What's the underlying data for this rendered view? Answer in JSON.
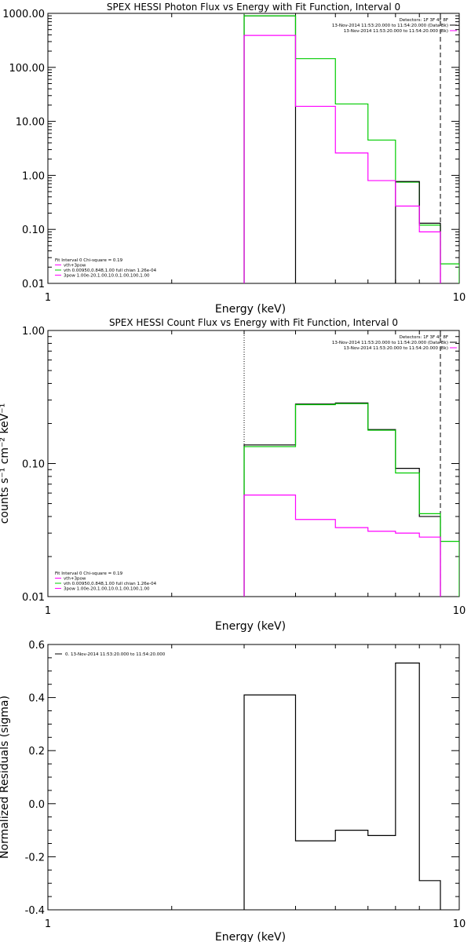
{
  "chart_data": [
    {
      "type": "line",
      "title": "SPEX HESSI Photon Flux vs Energy with Fit Function, Interval 0",
      "xlabel": "Energy (keV)",
      "ylabel": "",
      "xscale": "log",
      "yscale": "log",
      "xlim": [
        1,
        10
      ],
      "ylim": [
        0.01,
        1000
      ],
      "x_ticks": [
        "1",
        "10"
      ],
      "y_ticks": [
        "1000.00",
        "100.00",
        "10.00",
        "1.00",
        "0.10",
        "0.01"
      ],
      "grid": false,
      "info_text": [
        "Detectors: 1F 3F 4F 8F",
        "13-Nov-2014 11:53:20.000 to 11:54:20.000 (Data-Bk)",
        "13-Nov-2014 11:53:20.000 to 11:54:20.000 (Bk)"
      ],
      "info_legend_colors": [
        "#000000",
        "#ff00ff"
      ],
      "legend_text": [
        "Fit Interval 0   Chi-square = 0.19",
        "vth+3pow",
        "vth 0.00950,0.848,1.00   full chian 1.26e-04",
        "3pow 1.00e-20,1.00,10.0,1.00,100,1.00"
      ],
      "legend_colors": [
        "",
        "#ff00ff",
        "#00cc00",
        "#ff00ff"
      ],
      "legend_position": "bottom-left",
      "vertical_lines": [
        {
          "x": 3.0,
          "style": "dotted",
          "color": "#00cc00"
        },
        {
          "x": 9.0,
          "style": "dashed",
          "color": "#000000"
        }
      ],
      "series": [
        {
          "color": "#000000",
          "edges": [
            3.0,
            4.0
          ],
          "values": [
            900
          ]
        },
        {
          "color": "#00cc00",
          "edges": [
            3.0,
            4.0,
            5.0,
            6.0,
            7.0,
            8.0,
            9.0,
            10.0
          ],
          "values": [
            900,
            145,
            21,
            4.5,
            0.75,
            0.12,
            0.023
          ]
        },
        {
          "color": "#000000",
          "edges": [
            7.0,
            8.0,
            9.0
          ],
          "values": [
            0.77,
            0.13
          ]
        },
        {
          "color": "#ff00ff",
          "edges": [
            3.0,
            4.0,
            5.0,
            6.0,
            7.0,
            8.0,
            9.0
          ],
          "values": [
            390,
            19,
            2.6,
            0.8,
            0.27,
            0.09
          ]
        }
      ]
    },
    {
      "type": "line",
      "title": "SPEX HESSI Count Flux vs Energy with Fit Function, Interval 0",
      "xlabel": "Energy (keV)",
      "ylabel": "counts s⁻¹ cm⁻² keV⁻¹",
      "xscale": "log",
      "yscale": "log",
      "xlim": [
        1,
        10
      ],
      "ylim": [
        0.01,
        1.0
      ],
      "x_ticks": [
        "1",
        "10"
      ],
      "y_ticks": [
        "1.00",
        "0.10",
        "0.01"
      ],
      "grid": false,
      "info_text": [
        "Detectors: 1F 3F 4F 8F",
        "13-Nov-2014 11:53:20.000 to 11:54:20.000 (Data-Bk)",
        "13-Nov-2014 11:53:20.000 to 11:54:20.000 (Bk)"
      ],
      "info_legend_colors": [
        "#000000",
        "#ff00ff"
      ],
      "legend_text": [
        "Fit Interval 0   Chi-square = 0.19",
        "vth+3pow",
        "vth 0.00950,0.848,1.00   full chian 1.26e-04",
        "3pow 1.00e-20,1.00,10.0,1.00,100,1.00"
      ],
      "legend_colors": [
        "",
        "#ff00ff",
        "#00cc00",
        "#ff00ff"
      ],
      "legend_position": "bottom-left",
      "vertical_lines": [
        {
          "x": 3.0,
          "style": "dotted",
          "color": "#000000"
        },
        {
          "x": 9.0,
          "style": "dashed",
          "color": "#000000"
        }
      ],
      "series": [
        {
          "color": "#000000",
          "edges": [
            3.0,
            4.0,
            5.0,
            6.0,
            7.0,
            8.0,
            9.0
          ],
          "values": [
            0.138,
            0.28,
            0.285,
            0.18,
            0.092,
            0.04
          ]
        },
        {
          "color": "#00cc00",
          "edges": [
            3.0,
            4.0,
            5.0,
            6.0,
            7.0,
            8.0,
            9.0,
            10.0
          ],
          "values": [
            0.134,
            0.277,
            0.282,
            0.178,
            0.085,
            0.042,
            0.026
          ]
        },
        {
          "color": "#ff00ff",
          "edges": [
            3.0,
            4.0,
            5.0,
            6.0,
            7.0,
            8.0,
            9.0
          ],
          "values": [
            0.058,
            0.038,
            0.033,
            0.031,
            0.03,
            0.028
          ]
        }
      ]
    },
    {
      "type": "line",
      "title": "",
      "xlabel": "Energy (keV)",
      "ylabel": "Normalized Residuals (sigma)",
      "xscale": "log",
      "yscale": "linear",
      "xlim": [
        1,
        10
      ],
      "ylim": [
        -0.4,
        0.6
      ],
      "x_ticks": [
        "1",
        "10"
      ],
      "y_ticks": [
        "0.6",
        "0.4",
        "0.2",
        "0.0",
        "-0.2",
        "-0.4"
      ],
      "grid": false,
      "info_text": [
        "0. 13-Nov-2014 11:53:20.000 to 11:54:20.000"
      ],
      "info_legend_colors": [
        "#000000"
      ],
      "legend_text": [],
      "legend_colors": [],
      "legend_position": "top-left",
      "vertical_lines": [],
      "series": [
        {
          "color": "#000000",
          "edges": [
            3.0,
            4.0,
            5.0,
            6.0,
            7.0,
            8.0,
            9.0
          ],
          "values": [
            0.41,
            -0.14,
            -0.1,
            -0.12,
            0.53,
            -0.29
          ]
        }
      ]
    }
  ]
}
